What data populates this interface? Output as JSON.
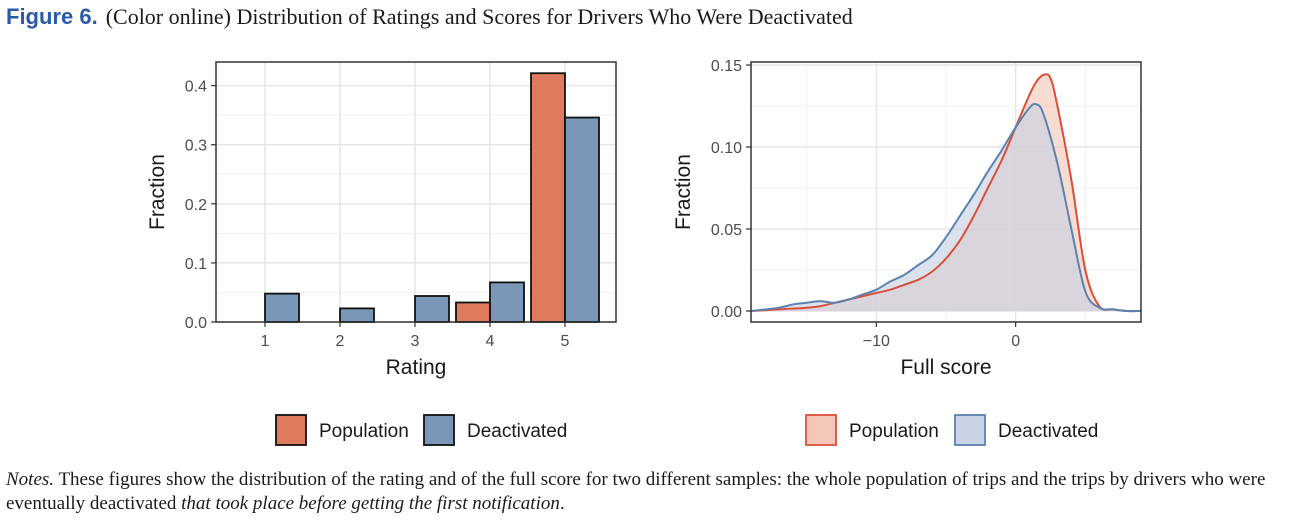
{
  "caption": {
    "label": "Figure 6.",
    "text": "(Color online) Distribution of Ratings and Scores for Drivers Who Were Deactivated"
  },
  "notes": {
    "label": "Notes.",
    "text": "These figures show the distribution of the rating and of the full score for two different samples: the whole population of trips and the trips by drivers who were eventually deactivated",
    "italic": "that took place before getting the first notification",
    "end": "."
  },
  "colors": {
    "population": "#e07a5f",
    "population_fill_light": "#f4c7b8",
    "population_line": "#d9503a",
    "deactivated": "#7b97b8",
    "deactivated_fill_light": "#c9d3e3",
    "deactivated_line": "#5b82b0"
  },
  "chart_data": [
    {
      "type": "bar",
      "xlabel": "Rating",
      "ylabel": "Fraction",
      "categories": [
        "1",
        "2",
        "3",
        "4",
        "5"
      ],
      "yticks": [
        "0.0",
        "0.1",
        "0.2",
        "0.3",
        "0.4"
      ],
      "ylim": [
        0,
        0.44
      ],
      "grid": true,
      "legend_position": "bottom",
      "series": [
        {
          "name": "Population",
          "values": [
            0.008,
            0.004,
            0.011,
            0.033,
            0.421
          ]
        },
        {
          "name": "Deactivated",
          "values": [
            0.048,
            0.023,
            0.044,
            0.067,
            0.346
          ]
        }
      ]
    },
    {
      "type": "area",
      "xlabel": "Full score",
      "ylabel": "Fraction",
      "xticks": [
        "−10",
        "0"
      ],
      "yticks": [
        "0.00",
        "0.05",
        "0.10",
        "0.15"
      ],
      "xlim": [
        -19,
        9
      ],
      "ylim": [
        0,
        0.15
      ],
      "grid": true,
      "legend_position": "bottom",
      "series": [
        {
          "name": "Population",
          "x": [
            -19,
            -17,
            -15,
            -14,
            -13,
            -12,
            -11,
            -10,
            -9,
            -8,
            -7,
            -6,
            -5,
            -4,
            -3,
            -2,
            -1,
            0,
            1,
            1.5,
            2,
            2.5,
            3,
            4,
            5,
            6,
            7,
            8,
            9
          ],
          "y": [
            0.0,
            0.001,
            0.002,
            0.003,
            0.005,
            0.007,
            0.009,
            0.011,
            0.013,
            0.016,
            0.019,
            0.024,
            0.032,
            0.043,
            0.058,
            0.075,
            0.092,
            0.112,
            0.132,
            0.14,
            0.144,
            0.142,
            0.125,
            0.08,
            0.025,
            0.003,
            0.001,
            0.0,
            0.0
          ]
        },
        {
          "name": "Deactivated",
          "x": [
            -19,
            -17,
            -16,
            -15,
            -14,
            -13,
            -12,
            -11,
            -10,
            -9,
            -8,
            -7,
            -6,
            -5,
            -4,
            -3,
            -2,
            -1,
            0,
            1,
            1.5,
            2,
            3,
            4,
            5,
            6,
            7,
            8,
            9
          ],
          "y": [
            0.0,
            0.002,
            0.004,
            0.005,
            0.006,
            0.005,
            0.007,
            0.01,
            0.013,
            0.018,
            0.022,
            0.028,
            0.034,
            0.045,
            0.058,
            0.071,
            0.085,
            0.098,
            0.112,
            0.124,
            0.126,
            0.12,
            0.09,
            0.05,
            0.012,
            0.002,
            0.001,
            0.0,
            0.0
          ]
        }
      ]
    }
  ]
}
